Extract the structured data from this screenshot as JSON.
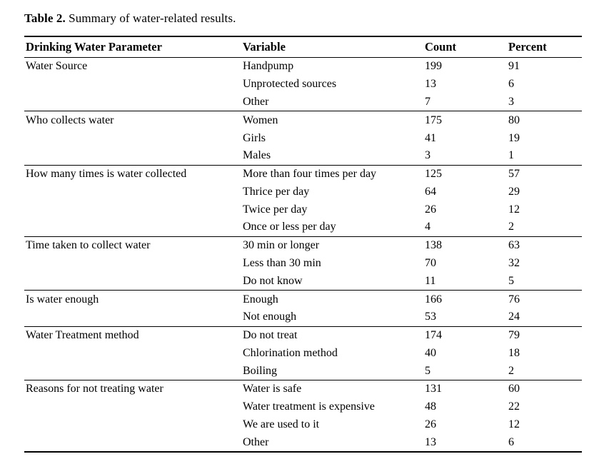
{
  "caption": {
    "label": "Table 2.",
    "text": "Summary of water-related results."
  },
  "table": {
    "columns": [
      "Drinking Water Parameter",
      "Variable",
      "Count",
      "Percent"
    ],
    "groups": [
      {
        "parameter": "Water Source",
        "rows": [
          {
            "variable": "Handpump",
            "count": "199",
            "percent": "91"
          },
          {
            "variable": "Unprotected sources",
            "count": "13",
            "percent": "6"
          },
          {
            "variable": "Other",
            "count": "7",
            "percent": "3"
          }
        ]
      },
      {
        "parameter": "Who collects water",
        "rows": [
          {
            "variable": "Women",
            "count": "175",
            "percent": "80"
          },
          {
            "variable": "Girls",
            "count": "41",
            "percent": "19"
          },
          {
            "variable": "Males",
            "count": "3",
            "percent": "1"
          }
        ]
      },
      {
        "parameter": "How many times is water collected",
        "rows": [
          {
            "variable": "More than four times per day",
            "count": "125",
            "percent": "57"
          },
          {
            "variable": "Thrice per day",
            "count": "64",
            "percent": "29"
          },
          {
            "variable": "Twice per day",
            "count": "26",
            "percent": "12"
          },
          {
            "variable": "Once or less per day",
            "count": "4",
            "percent": "2"
          }
        ]
      },
      {
        "parameter": "Time taken to collect water",
        "rows": [
          {
            "variable": "30 min or longer",
            "count": "138",
            "percent": "63"
          },
          {
            "variable": "Less than 30 min",
            "count": "70",
            "percent": "32"
          },
          {
            "variable": "Do not know",
            "count": "11",
            "percent": "5"
          }
        ]
      },
      {
        "parameter": "Is water enough",
        "rows": [
          {
            "variable": "Enough",
            "count": "166",
            "percent": "76"
          },
          {
            "variable": "Not enough",
            "count": "53",
            "percent": "24"
          }
        ]
      },
      {
        "parameter": "Water Treatment method",
        "rows": [
          {
            "variable": "Do not treat",
            "count": "174",
            "percent": "79"
          },
          {
            "variable": "Chlorination method",
            "count": "40",
            "percent": "18"
          },
          {
            "variable": "Boiling",
            "count": "5",
            "percent": "2"
          }
        ]
      },
      {
        "parameter": "Reasons for not treating water",
        "rows": [
          {
            "variable": "Water is safe",
            "count": "131",
            "percent": "60"
          },
          {
            "variable": "Water treatment is expensive",
            "count": "48",
            "percent": "22"
          },
          {
            "variable": "We are used to it",
            "count": "26",
            "percent": "12"
          },
          {
            "variable": "Other",
            "count": "13",
            "percent": "6"
          }
        ]
      }
    ]
  },
  "colors": {
    "background": "#ffffff",
    "text": "#000000",
    "rule": "#000000"
  }
}
